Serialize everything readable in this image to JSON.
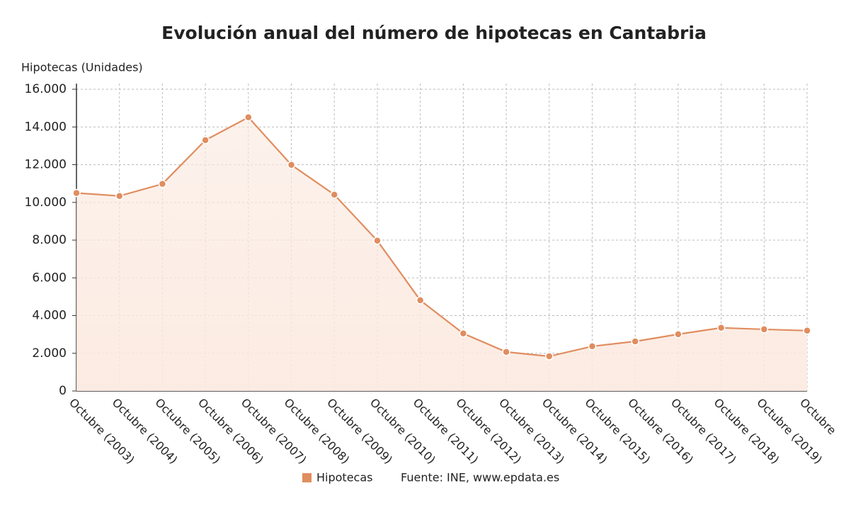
{
  "chart_data": {
    "type": "line",
    "title": "Evolución anual del número de hipotecas en Cantabria",
    "y_label": "Hipotecas (Unidades)",
    "source": "Fuente: INE, www.epdata.es",
    "categories": [
      "Octubre (2003)",
      "Octubre (2004)",
      "Octubre (2005)",
      "Octubre (2006)",
      "Octubre (2007)",
      "Octubre (2008)",
      "Octubre (2009)",
      "Octubre (2010)",
      "Octubre (2011)",
      "Octubre (2012)",
      "Octubre (2013)",
      "Octubre (2014)",
      "Octubre (2015)",
      "Octubre (2016)",
      "Octubre (2017)",
      "Octubre (2018)",
      "Octubre (2019)",
      "Octubre"
    ],
    "series": [
      {
        "name": "Hipotecas",
        "color": "#e08d5f",
        "values": [
          10500,
          10340,
          10980,
          13300,
          14510,
          11990,
          10410,
          7970,
          4810,
          3050,
          2070,
          1840,
          2370,
          2630,
          3010,
          3350,
          3270,
          3200
        ]
      }
    ],
    "ylim": [
      0,
      16000
    ],
    "yticks": [
      0,
      {
        "value": 2000,
        "label": "2.000"
      },
      {
        "value": 4000,
        "label": "4.000"
      },
      {
        "value": 6000,
        "label": "6.000"
      },
      {
        "value": 8000,
        "label": "8.000"
      },
      {
        "value": 10000,
        "label": "10.000"
      },
      {
        "value": 12000,
        "label": "12.000"
      },
      {
        "value": 14000,
        "label": "14.000"
      },
      {
        "value": 16000,
        "label": "16.000"
      }
    ],
    "grid": true
  }
}
